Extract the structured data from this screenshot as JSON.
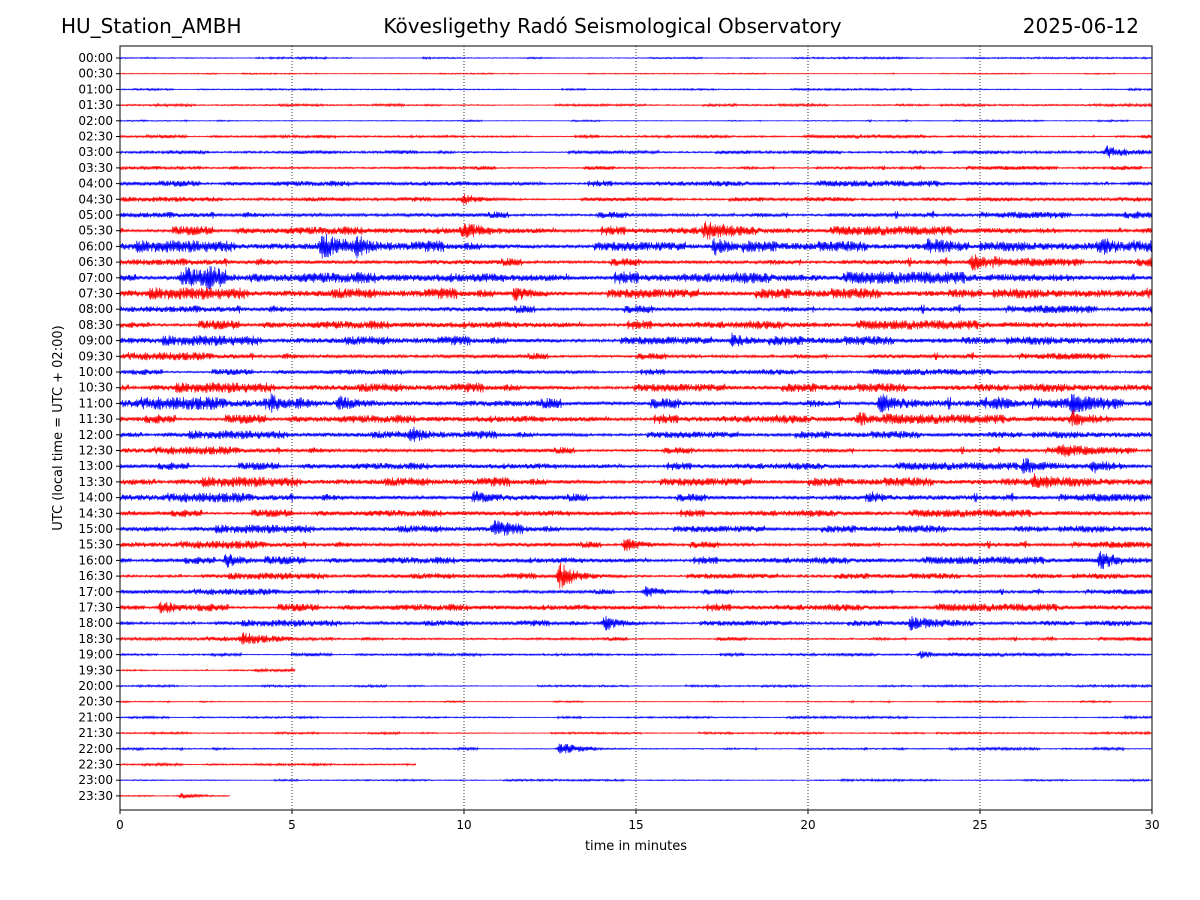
{
  "header": {
    "station": "HU_Station_AMBH",
    "observatory": "Kövesligethy Radó Seismological Observatory",
    "date": "2025-06-12"
  },
  "chart_data": {
    "type": "line",
    "title": "Kövesligethy Radó Seismological Observatory",
    "xlabel": "time in minutes",
    "ylabel": "UTC (local time = UTC + 02:00)",
    "xlim": [
      0,
      30
    ],
    "xticks": [
      "0",
      "5",
      "10",
      "15",
      "20",
      "25",
      "30"
    ],
    "grid": "vertical dotted lines at each x tick",
    "colors": [
      "#0000ff",
      "#ff0000"
    ],
    "rows": [
      "00:00",
      "00:30",
      "01:00",
      "01:30",
      "02:00",
      "02:30",
      "03:00",
      "03:30",
      "04:00",
      "04:30",
      "05:00",
      "05:30",
      "06:00",
      "06:30",
      "07:00",
      "07:30",
      "08:00",
      "08:30",
      "09:00",
      "09:30",
      "10:00",
      "10:30",
      "11:00",
      "11:30",
      "12:00",
      "12:30",
      "13:00",
      "13:30",
      "14:00",
      "14:30",
      "15:00",
      "15:30",
      "16:00",
      "16:30",
      "17:00",
      "17:30",
      "18:00",
      "18:30",
      "19:00",
      "19:30",
      "20:00",
      "20:30",
      "21:00",
      "21:30",
      "22:00",
      "22:30",
      "23:00",
      "23:30"
    ],
    "noise_levels": [
      0.6,
      0.4,
      0.6,
      0.8,
      0.6,
      1.0,
      1.2,
      1.5,
      2.0,
      1.5,
      2.5,
      3.0,
      3.5,
      3.0,
      4.0,
      3.5,
      3.0,
      3.0,
      3.0,
      2.5,
      2.0,
      3.0,
      4.0,
      3.0,
      2.5,
      2.5,
      2.5,
      3.0,
      3.0,
      2.5,
      2.5,
      2.5,
      2.5,
      2.0,
      2.0,
      2.5,
      2.0,
      1.5,
      1.0,
      0.8,
      0.7,
      0.6,
      0.7,
      0.7,
      1.0,
      0.8,
      0.6,
      0.6
    ],
    "row_end_minutes": {
      "19:30": 5.1,
      "22:30": 8.6,
      "23:30": 3.2
    },
    "events": [
      {
        "row": "03:00",
        "t": 28.7,
        "amp": 5
      },
      {
        "row": "04:30",
        "t": 10.0,
        "amp": 5
      },
      {
        "row": "05:30",
        "t": 10.0,
        "amp": 6
      },
      {
        "row": "05:30",
        "t": 17.0,
        "amp": 8
      },
      {
        "row": "06:00",
        "t": 5.9,
        "amp": 9
      },
      {
        "row": "06:00",
        "t": 6.9,
        "amp": 7
      },
      {
        "row": "06:00",
        "t": 17.3,
        "amp": 8
      },
      {
        "row": "06:00",
        "t": 23.5,
        "amp": 6
      },
      {
        "row": "06:00",
        "t": 28.5,
        "amp": 7
      },
      {
        "row": "06:30",
        "t": 24.8,
        "amp": 9
      },
      {
        "row": "07:00",
        "t": 1.8,
        "amp": 7
      },
      {
        "row": "07:00",
        "t": 2.6,
        "amp": 6
      },
      {
        "row": "07:30",
        "t": 11.5,
        "amp": 6
      },
      {
        "row": "09:00",
        "t": 17.8,
        "amp": 6
      },
      {
        "row": "11:00",
        "t": 4.4,
        "amp": 8
      },
      {
        "row": "11:00",
        "t": 6.4,
        "amp": 6
      },
      {
        "row": "11:00",
        "t": 22.1,
        "amp": 9
      },
      {
        "row": "11:00",
        "t": 25.4,
        "amp": 7
      },
      {
        "row": "11:00",
        "t": 27.7,
        "amp": 6
      },
      {
        "row": "11:30",
        "t": 21.5,
        "amp": 7
      },
      {
        "row": "11:30",
        "t": 27.7,
        "amp": 7
      },
      {
        "row": "12:00",
        "t": 8.5,
        "amp": 6
      },
      {
        "row": "12:30",
        "t": 27.3,
        "amp": 6
      },
      {
        "row": "13:00",
        "t": 26.3,
        "amp": 8
      },
      {
        "row": "13:00",
        "t": 28.3,
        "amp": 6
      },
      {
        "row": "13:30",
        "t": 26.6,
        "amp": 6
      },
      {
        "row": "14:00",
        "t": 10.3,
        "amp": 6
      },
      {
        "row": "14:00",
        "t": 21.8,
        "amp": 6
      },
      {
        "row": "15:00",
        "t": 10.9,
        "amp": 6
      },
      {
        "row": "15:30",
        "t": 14.7,
        "amp": 7
      },
      {
        "row": "16:00",
        "t": 3.1,
        "amp": 8
      },
      {
        "row": "16:00",
        "t": 28.5,
        "amp": 8
      },
      {
        "row": "16:30",
        "t": 12.8,
        "amp": 12
      },
      {
        "row": "17:00",
        "t": 15.3,
        "amp": 6
      },
      {
        "row": "17:30",
        "t": 1.2,
        "amp": 6
      },
      {
        "row": "18:00",
        "t": 14.1,
        "amp": 7
      },
      {
        "row": "18:00",
        "t": 23.0,
        "amp": 6
      },
      {
        "row": "18:30",
        "t": 3.6,
        "amp": 5
      },
      {
        "row": "19:00",
        "t": 23.3,
        "amp": 4
      },
      {
        "row": "22:00",
        "t": 12.8,
        "amp": 6
      },
      {
        "row": "23:30",
        "t": 1.8,
        "amp": 3
      }
    ]
  }
}
